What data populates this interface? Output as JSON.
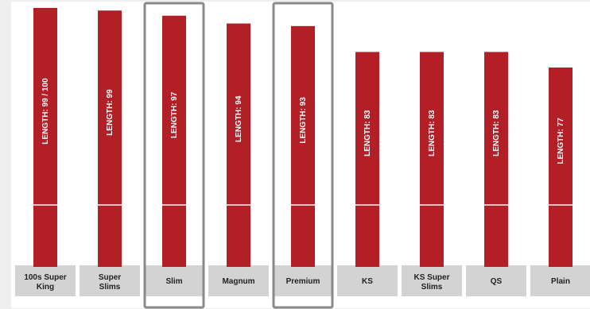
{
  "chart_data": {
    "type": "bar",
    "orientation": "vertical",
    "categories": [
      "100s Super King",
      "Super Slims",
      "Slim",
      "Magnum",
      "Premium",
      "KS",
      "KS Super Slims",
      "QS",
      "Plain"
    ],
    "values": [
      100,
      99,
      97,
      94,
      93,
      83,
      83,
      83,
      77
    ],
    "bar_labels": [
      "LENGTH: 99 / 100",
      "LENGTH: 99",
      "LENGTH: 97",
      "LENGTH: 94",
      "LENGTH: 93",
      "LENGTH: 83",
      "LENGTH: 83",
      "LENGTH: 83",
      "LENGTH: 77"
    ],
    "highlighted": [
      "Slim",
      "Premium"
    ],
    "ylim": [
      0,
      100
    ],
    "grid": false,
    "legend": "none",
    "title": "",
    "xlabel": "",
    "ylabel": ""
  },
  "colors": {
    "bar": "#b21f26",
    "bar_divider": "#ffffff",
    "bar_label_text": "#ffffff",
    "category_cell": "#d3d3d3",
    "category_text": "#222222",
    "highlight_outline": "#8a8a8a"
  }
}
